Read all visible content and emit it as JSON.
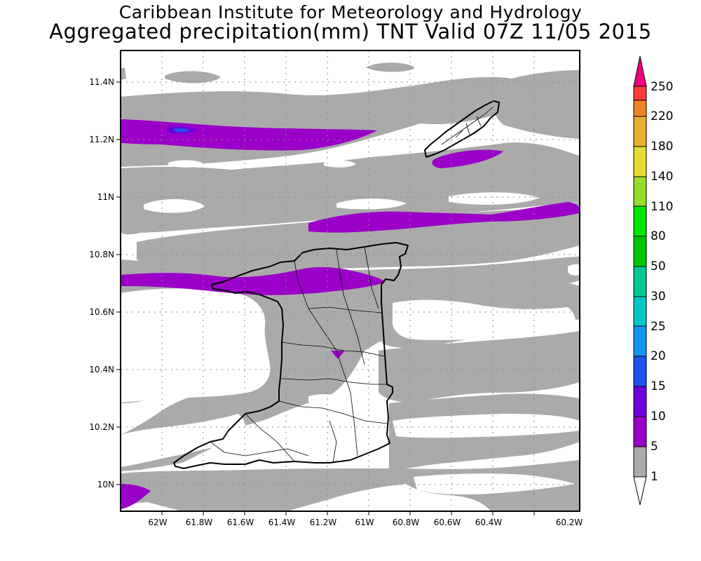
{
  "header": {
    "title": "Caribbean Institute for Meteorology and Hydrology",
    "subtitle": "Aggregated precipitation(mm) TNT Valid 07Z 11/05 2015"
  },
  "map": {
    "region": "Trinidad and Tobago",
    "lon_range": [
      -62.25,
      -60.15
    ],
    "lat_range": [
      9.9,
      11.5
    ],
    "lon_ticks": [
      "62W",
      "61.8W",
      "61.6W",
      "61.4W",
      "61.2W",
      "61W",
      "60.8W",
      "60.6W",
      "60.4W",
      "60.2W"
    ],
    "lat_ticks": [
      "10N",
      "10.2N",
      "10.4N",
      "10.6N",
      "10.8N",
      "11N",
      "11.2N",
      "11.4N"
    ],
    "grid": "dotted",
    "colors": {
      "land_outline": "#000000",
      "grid": "#888888",
      "frame": "#000000"
    }
  },
  "colorbar": {
    "levels": [
      "1",
      "5",
      "10",
      "15",
      "20",
      "25",
      "30",
      "50",
      "80",
      "110",
      "140",
      "180",
      "220",
      "250"
    ],
    "colors": [
      "#ffffff",
      "#aaaaaa",
      "#9a00c8",
      "#6e00dc",
      "#2050f0",
      "#1496f0",
      "#00c8c8",
      "#00c896",
      "#00c800",
      "#00e600",
      "#96dc28",
      "#e6dc32",
      "#e6af2d",
      "#f08228",
      "#fa3c3c",
      "#f00082"
    ]
  }
}
